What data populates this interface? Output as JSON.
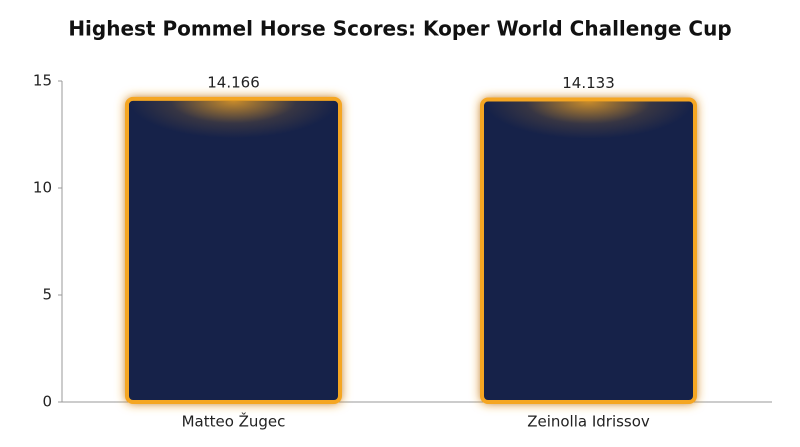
{
  "chart_data": {
    "type": "bar",
    "title": "Highest Pommel Horse Scores: Koper World Challenge Cup",
    "categories": [
      "Matteo Žugec",
      "Zeinolla Idrissov"
    ],
    "values": [
      14.166,
      14.133
    ],
    "color": "#13214a",
    "edgecolor": "#f5a623",
    "ylim": [
      0,
      15
    ],
    "yticks": [
      0,
      5,
      10,
      15
    ],
    "grid": false
  }
}
